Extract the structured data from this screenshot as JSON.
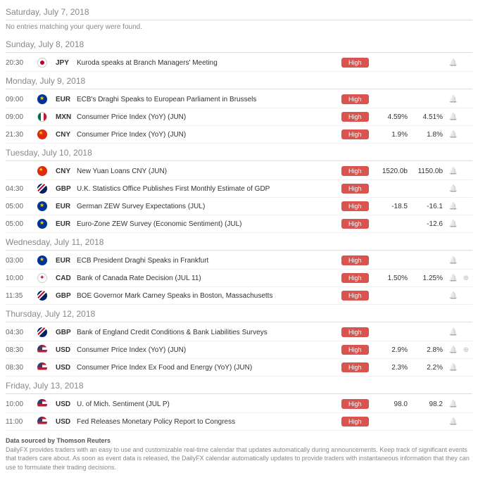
{
  "impact_label": "High",
  "no_entries_text": "No entries matching your query were found.",
  "footer": {
    "source": "Data sourced by Thomson Reuters",
    "disclaimer": "DailyFX provides traders with an easy to use and customizable real-time calendar that updates automatically during announcements. Keep track of significant events that traders care about. As soon as event data is released, the DailyFX calendar automatically updates to provide traders with instantaneous information that they can use to formulate their trading decisions."
  },
  "days": [
    {
      "header": "Saturday, July 7, 2018",
      "empty": true,
      "events": []
    },
    {
      "header": "Sunday, July 8, 2018",
      "events": [
        {
          "time": "20:30",
          "flag": "jp",
          "currency": "JPY",
          "desc": "Kuroda speaks at Branch Managers' Meeting",
          "val1": "",
          "val2": "",
          "plus": false
        }
      ]
    },
    {
      "header": "Monday, July 9, 2018",
      "events": [
        {
          "time": "09:00",
          "flag": "eu",
          "currency": "EUR",
          "desc": "ECB's Draghi Speaks to European Parliament in Brussels",
          "val1": "",
          "val2": "",
          "plus": false
        },
        {
          "time": "09:00",
          "flag": "mx",
          "currency": "MXN",
          "desc": "Consumer Price Index (YoY) (JUN)",
          "val1": "4.59%",
          "val2": "4.51%",
          "plus": false
        },
        {
          "time": "21:30",
          "flag": "cn",
          "currency": "CNY",
          "desc": "Consumer Price Index (YoY) (JUN)",
          "val1": "1.9%",
          "val2": "1.8%",
          "plus": false
        }
      ]
    },
    {
      "header": "Tuesday, July 10, 2018",
      "events": [
        {
          "time": "",
          "flag": "cn",
          "currency": "CNY",
          "desc": "New Yuan Loans CNY (JUN)",
          "val1": "1520.0b",
          "val2": "1150.0b",
          "plus": false
        },
        {
          "time": "04:30",
          "flag": "gb",
          "currency": "GBP",
          "desc": "U.K. Statistics Office Publishes First Monthly Estimate of GDP",
          "val1": "",
          "val2": "",
          "plus": false
        },
        {
          "time": "05:00",
          "flag": "eu",
          "currency": "EUR",
          "desc": "German ZEW Survey Expectations (JUL)",
          "val1": "-18.5",
          "val2": "-16.1",
          "plus": false
        },
        {
          "time": "05:00",
          "flag": "eu",
          "currency": "EUR",
          "desc": "Euro-Zone ZEW Survey (Economic Sentiment) (JUL)",
          "val1": "",
          "val2": "-12.6",
          "plus": false
        }
      ]
    },
    {
      "header": "Wednesday, July 11, 2018",
      "events": [
        {
          "time": "03:00",
          "flag": "eu",
          "currency": "EUR",
          "desc": "ECB President Draghi Speaks in Frankfurt",
          "val1": "",
          "val2": "",
          "plus": false
        },
        {
          "time": "10:00",
          "flag": "ca",
          "currency": "CAD",
          "desc": "Bank of Canada Rate Decision (JUL 11)",
          "val1": "1.50%",
          "val2": "1.25%",
          "plus": true
        },
        {
          "time": "11:35",
          "flag": "gb",
          "currency": "GBP",
          "desc": "BOE Governor Mark Carney Speaks in Boston, Massachusetts",
          "val1": "",
          "val2": "",
          "plus": false
        }
      ]
    },
    {
      "header": "Thursday, July 12, 2018",
      "events": [
        {
          "time": "04:30",
          "flag": "gb",
          "currency": "GBP",
          "desc": "Bank of England Credit Conditions & Bank Liabilities Surveys",
          "val1": "",
          "val2": "",
          "plus": false
        },
        {
          "time": "08:30",
          "flag": "us",
          "currency": "USD",
          "desc": "Consumer Price Index (YoY) (JUN)",
          "val1": "2.9%",
          "val2": "2.8%",
          "plus": true
        },
        {
          "time": "08:30",
          "flag": "us",
          "currency": "USD",
          "desc": "Consumer Price Index Ex Food and Energy (YoY) (JUN)",
          "val1": "2.3%",
          "val2": "2.2%",
          "plus": false
        }
      ]
    },
    {
      "header": "Friday, July 13, 2018",
      "events": [
        {
          "time": "10:00",
          "flag": "us",
          "currency": "USD",
          "desc": "U. of Mich. Sentiment (JUL P)",
          "val1": "98.0",
          "val2": "98.2",
          "plus": false
        },
        {
          "time": "11:00",
          "flag": "us",
          "currency": "USD",
          "desc": "Fed Releases Monetary Policy Report to Congress",
          "val1": "",
          "val2": "",
          "plus": false
        }
      ]
    }
  ]
}
